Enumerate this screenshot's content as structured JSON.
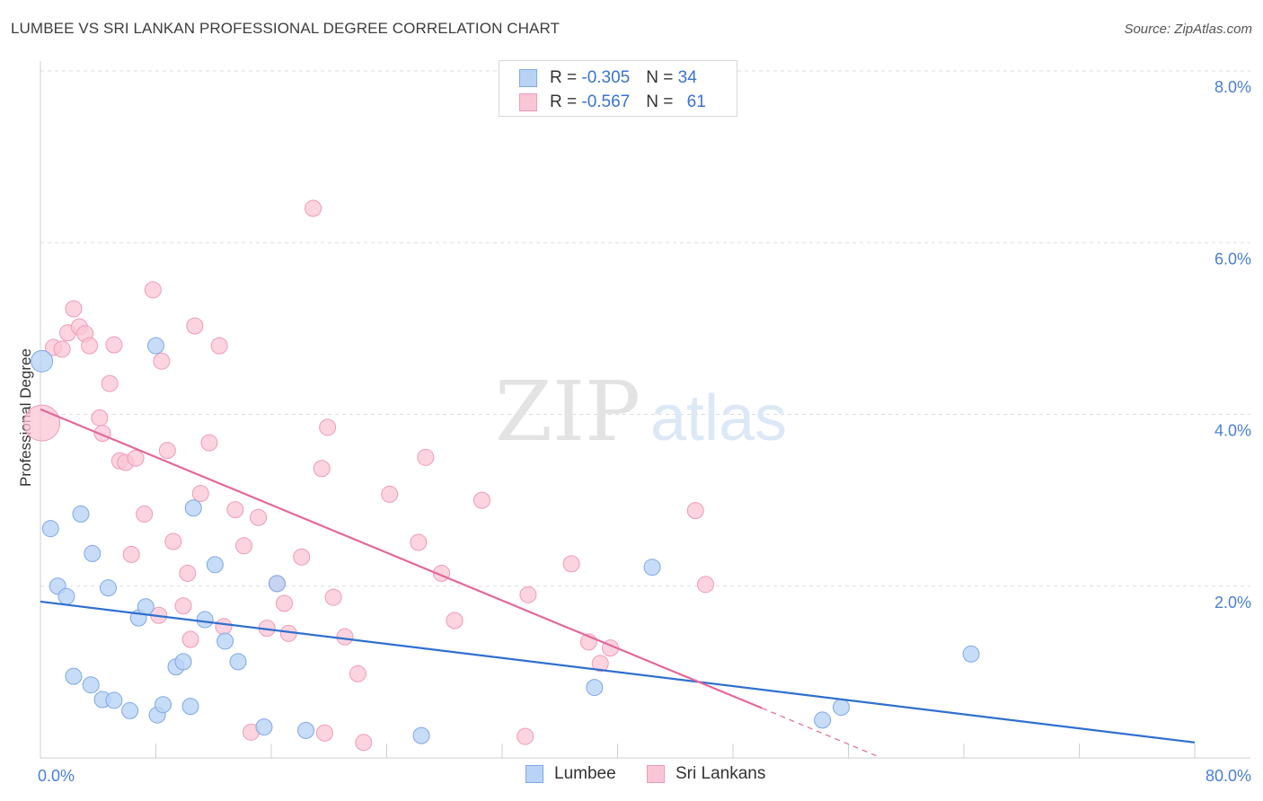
{
  "title": "LUMBEE VS SRI LANKAN PROFESSIONAL DEGREE CORRELATION CHART",
  "source": "Source: ZipAtlas.com",
  "watermark": {
    "zip": "ZIP",
    "atlas": "atlas"
  },
  "legend": {
    "rows": [
      {
        "r_label": "R = ",
        "r_value": "-0.305",
        "n_label": "N = ",
        "n_value": "34"
      },
      {
        "r_label": "R = ",
        "r_value": "-0.567",
        "n_label": "N = ",
        "n_value": "61"
      }
    ]
  },
  "colors": {
    "lumbee_fill": "#b9d3f5",
    "lumbee_stroke": "#7ea8e6",
    "lumbee_line": "#2f6fcf",
    "srilankan_fill": "#f9c6d6",
    "srilankan_stroke": "#ef9ab6",
    "srilankan_line": "#e4679a",
    "tick_text": "#4a7fd4",
    "grid": "#dddddd"
  },
  "chart_data": {
    "type": "scatter",
    "ylabel": "Professional Degree",
    "xlim": [
      0,
      80
    ],
    "ylim": [
      0,
      8.0
    ],
    "x_tick_labels": [
      "0.0%",
      "80.0%"
    ],
    "y_ticks": [
      2.0,
      4.0,
      6.0,
      8.0
    ],
    "y_tick_labels": [
      "2.0%",
      "4.0%",
      "6.0%",
      "8.0%"
    ],
    "grid": true,
    "legend_position": "top-center",
    "series": [
      {
        "name": "Lumbee",
        "n": 34,
        "r": -0.305,
        "points": [
          [
            0.1,
            4.62
          ],
          [
            0.7,
            2.67
          ],
          [
            1.2,
            2.0
          ],
          [
            1.8,
            1.88
          ],
          [
            2.3,
            0.95
          ],
          [
            2.8,
            2.84
          ],
          [
            3.5,
            0.85
          ],
          [
            3.6,
            2.38
          ],
          [
            4.3,
            0.68
          ],
          [
            4.7,
            1.98
          ],
          [
            5.1,
            0.67
          ],
          [
            6.2,
            0.55
          ],
          [
            6.8,
            1.63
          ],
          [
            7.3,
            1.76
          ],
          [
            8.1,
            0.5
          ],
          [
            8.5,
            0.62
          ],
          [
            8.0,
            4.8
          ],
          [
            9.4,
            1.06
          ],
          [
            9.9,
            1.12
          ],
          [
            10.4,
            0.6
          ],
          [
            10.6,
            2.91
          ],
          [
            11.4,
            1.61
          ],
          [
            12.1,
            2.25
          ],
          [
            12.8,
            1.36
          ],
          [
            13.7,
            1.12
          ],
          [
            15.5,
            0.36
          ],
          [
            16.4,
            2.03
          ],
          [
            18.4,
            0.32
          ],
          [
            26.4,
            0.26
          ],
          [
            38.4,
            0.82
          ],
          [
            42.4,
            2.22
          ],
          [
            54.2,
            0.44
          ],
          [
            55.5,
            0.59
          ],
          [
            64.5,
            1.21
          ]
        ],
        "trend": {
          "x": [
            0,
            80
          ],
          "y": [
            1.82,
            0.18
          ]
        }
      },
      {
        "name": "Sri Lankans",
        "n": 61,
        "r": -0.567,
        "points": [
          [
            0.1,
            3.9
          ],
          [
            0.9,
            4.78
          ],
          [
            1.5,
            4.76
          ],
          [
            1.9,
            4.95
          ],
          [
            2.3,
            5.23
          ],
          [
            2.7,
            5.02
          ],
          [
            3.1,
            4.94
          ],
          [
            3.4,
            4.8
          ],
          [
            4.1,
            3.96
          ],
          [
            4.3,
            3.78
          ],
          [
            4.8,
            4.36
          ],
          [
            5.1,
            4.81
          ],
          [
            5.5,
            3.46
          ],
          [
            5.9,
            3.44
          ],
          [
            6.3,
            2.37
          ],
          [
            6.6,
            3.49
          ],
          [
            7.2,
            2.84
          ],
          [
            7.8,
            5.45
          ],
          [
            8.2,
            1.66
          ],
          [
            8.4,
            4.62
          ],
          [
            8.8,
            3.58
          ],
          [
            9.2,
            2.52
          ],
          [
            9.9,
            1.77
          ],
          [
            10.2,
            2.15
          ],
          [
            10.4,
            1.38
          ],
          [
            10.7,
            5.03
          ],
          [
            11.1,
            3.08
          ],
          [
            11.7,
            3.67
          ],
          [
            12.4,
            4.8
          ],
          [
            12.7,
            1.53
          ],
          [
            13.5,
            2.89
          ],
          [
            14.1,
            2.47
          ],
          [
            15.1,
            2.8
          ],
          [
            15.7,
            1.51
          ],
          [
            16.4,
            2.03
          ],
          [
            16.9,
            1.8
          ],
          [
            17.2,
            1.45
          ],
          [
            18.1,
            2.34
          ],
          [
            18.9,
            6.4
          ],
          [
            19.5,
            3.37
          ],
          [
            19.9,
            3.85
          ],
          [
            20.3,
            1.87
          ],
          [
            21.1,
            1.41
          ],
          [
            22.0,
            0.98
          ],
          [
            22.4,
            0.18
          ],
          [
            24.2,
            3.07
          ],
          [
            26.2,
            2.51
          ],
          [
            26.7,
            3.5
          ],
          [
            27.8,
            2.15
          ],
          [
            28.7,
            1.6
          ],
          [
            30.6,
            3.0
          ],
          [
            33.6,
            0.25
          ],
          [
            33.8,
            1.9
          ],
          [
            36.8,
            2.26
          ],
          [
            38.0,
            1.35
          ],
          [
            38.8,
            1.1
          ],
          [
            39.5,
            1.28
          ],
          [
            45.4,
            2.88
          ],
          [
            46.1,
            2.02
          ],
          [
            19.7,
            0.29
          ],
          [
            14.6,
            0.3
          ]
        ],
        "trend": {
          "x": [
            0,
            50
          ],
          "y": [
            4.06,
            0.58
          ]
        },
        "trend_extension": {
          "x": [
            50,
            58
          ],
          "y": [
            0.58,
            0.02
          ]
        }
      }
    ]
  },
  "bottom_legend": [
    {
      "label": "Lumbee"
    },
    {
      "label": "Sri Lankans"
    }
  ]
}
